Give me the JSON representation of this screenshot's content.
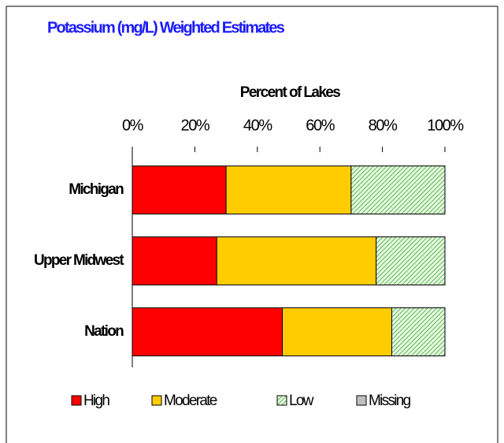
{
  "chart_data": {
    "type": "stacked_barh",
    "title": "Potassium (mg/L) Weighted Estimates",
    "x_label": "Percent of Lakes",
    "categories": [
      "Michigan",
      "Upper Midwest",
      "Nation"
    ],
    "series": [
      {
        "name": "High",
        "color": "#ff0000",
        "values": [
          30,
          27,
          48
        ]
      },
      {
        "name": "Moderate",
        "color": "#ffcc00",
        "values": [
          40,
          51,
          35
        ]
      },
      {
        "name": "Low",
        "color": "#33aa33",
        "hatch": true,
        "values": [
          30,
          22,
          17
        ]
      },
      {
        "name": "Missing",
        "color": "#c0c0c0",
        "values": [
          0,
          0,
          0
        ]
      }
    ],
    "xlim": [
      0,
      100
    ],
    "xticks": [
      {
        "value": 0,
        "label": "0%"
      },
      {
        "value": 20,
        "label": "20%"
      },
      {
        "value": 40,
        "label": "40%"
      },
      {
        "value": 60,
        "label": "60%"
      },
      {
        "value": 80,
        "label": "80%"
      },
      {
        "value": 100,
        "label": "100%"
      }
    ],
    "legend": "bottom"
  }
}
